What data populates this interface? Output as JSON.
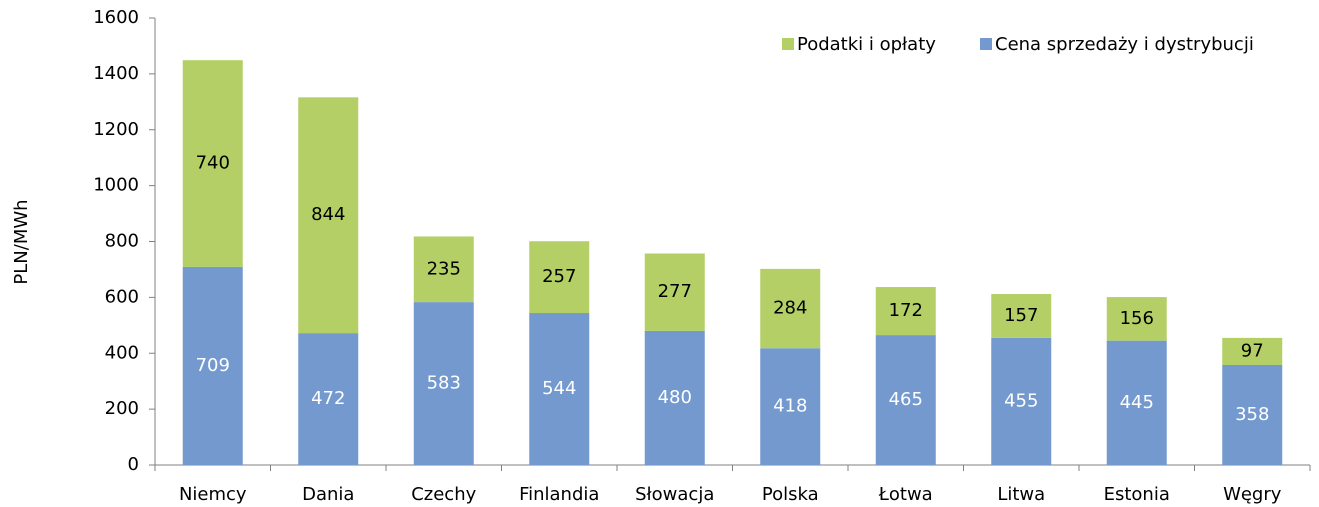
{
  "chart_data": {
    "type": "stacked_bar",
    "y_label": "PLN/MWh",
    "categories": [
      "Niemcy",
      "Dania",
      "Czechy",
      "Finlandia",
      "Słowacja",
      "Polska",
      "Łotwa",
      "Litwa",
      "Estonia",
      "Węgry"
    ],
    "series": [
      {
        "name": "Cena sprzedaży i dystrybucji",
        "color": "#7399cf",
        "label_color": "#ffffff",
        "values": [
          709,
          472,
          583,
          544,
          480,
          418,
          465,
          455,
          445,
          358
        ]
      },
      {
        "name": "Podatki i opłaty",
        "color": "#b3cf66",
        "label_color": "#000000",
        "values": [
          740,
          844,
          235,
          257,
          277,
          284,
          172,
          157,
          156,
          97
        ]
      }
    ],
    "ylim": [
      0,
      1600
    ],
    "yticks": [
      0,
      200,
      400,
      600,
      800,
      1000,
      1200,
      1400,
      1600
    ],
    "grid": false,
    "legend": "top-right"
  }
}
